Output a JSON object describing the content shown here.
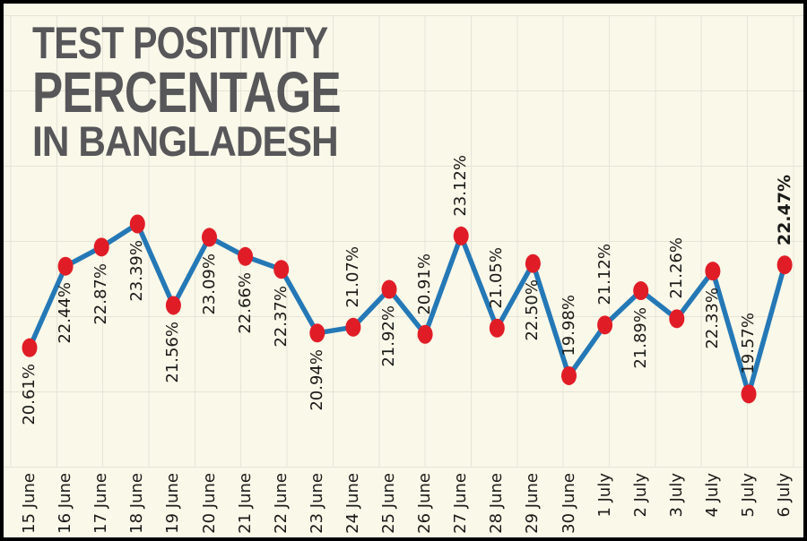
{
  "title": {
    "line1": "TEST POSITIVITY",
    "line2": "PERCENTAGE",
    "line3": "IN BANGLADESH"
  },
  "chart_data": {
    "type": "line",
    "title": "TEST POSITIVITY PERCENTAGE IN BANGLADESH",
    "x": [
      "15 June",
      "16 June",
      "17 June",
      "18 June",
      "19 June",
      "20 June",
      "21 June",
      "22 June",
      "23 June",
      "24 June",
      "25 June",
      "26 June",
      "27 June",
      "28 June",
      "29 June",
      "30 June",
      "1 July",
      "2 July",
      "3 July",
      "4 July",
      "5 July",
      "6 July"
    ],
    "series": [
      {
        "name": "Test positivity percentage",
        "values": [
          20.61,
          22.44,
          22.87,
          23.39,
          21.56,
          23.09,
          22.66,
          22.37,
          20.94,
          21.07,
          21.92,
          20.91,
          23.12,
          21.05,
          22.5,
          19.98,
          21.12,
          21.89,
          21.26,
          22.33,
          19.57,
          22.47
        ]
      }
    ],
    "point_labels": [
      {
        "text": "20.61%",
        "position": "below",
        "bold": false
      },
      {
        "text": "22.44%",
        "position": "below",
        "bold": false
      },
      {
        "text": "22.87%",
        "position": "below",
        "bold": false
      },
      {
        "text": "23.39%",
        "position": "below",
        "bold": false
      },
      {
        "text": "21.56%",
        "position": "below",
        "bold": false
      },
      {
        "text": "23.09%",
        "position": "below",
        "bold": false
      },
      {
        "text": "22.66%",
        "position": "below",
        "bold": false
      },
      {
        "text": "22.37%",
        "position": "below",
        "bold": false
      },
      {
        "text": "20.94%",
        "position": "below",
        "bold": false
      },
      {
        "text": "21.07%",
        "position": "above",
        "bold": false
      },
      {
        "text": "21.92%",
        "position": "below",
        "bold": false
      },
      {
        "text": "20.91%",
        "position": "above",
        "bold": false
      },
      {
        "text": "23.12%",
        "position": "above",
        "bold": false
      },
      {
        "text": "21.05%",
        "position": "above",
        "bold": false
      },
      {
        "text": "22.50%",
        "position": "below",
        "bold": false
      },
      {
        "text": "19.98%",
        "position": "above",
        "bold": false
      },
      {
        "text": "21.12%",
        "position": "above",
        "bold": false
      },
      {
        "text": "21.89%",
        "position": "below",
        "bold": false
      },
      {
        "text": "21.26%",
        "position": "above",
        "bold": false
      },
      {
        "text": "22.33%",
        "position": "below",
        "bold": false
      },
      {
        "text": "19.57%",
        "position": "above",
        "bold": false
      },
      {
        "text": "22.47%",
        "position": "above",
        "bold": true
      }
    ],
    "xlabel": "",
    "ylabel": "",
    "grid": true,
    "legend": "none",
    "colors": {
      "line": "#2478b6",
      "marker": "#e01d26",
      "background": "#faf8e9",
      "grid": "#e5e4d6",
      "title": "#57575a",
      "label_text": "#1a1a18",
      "border": "#000000"
    }
  }
}
